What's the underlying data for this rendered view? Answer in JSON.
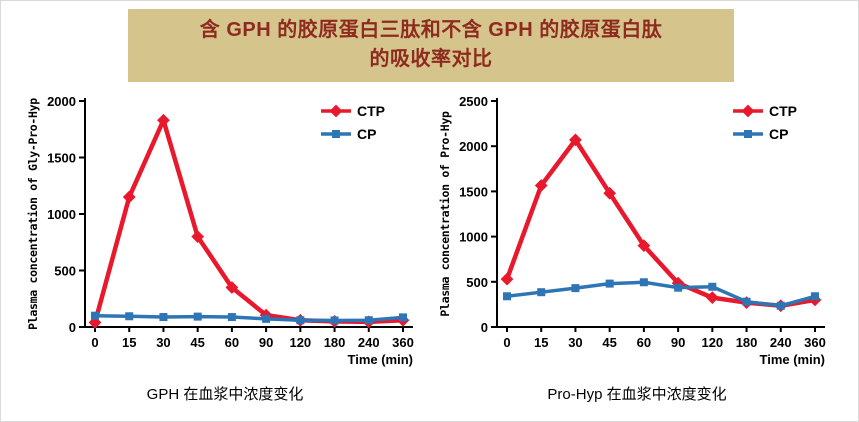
{
  "title": {
    "line1": "含 GPH 的胶原蛋白三肽和不含 GPH 的胶原蛋白肽",
    "line2": "的吸收率对比"
  },
  "colors": {
    "title_bg": "#d5c58c",
    "title_text": "#8e2b1e",
    "ctp_red": "#e8192c",
    "cp_blue": "#2e75b6",
    "axis": "#000000"
  },
  "chart_data": [
    {
      "type": "line",
      "title": "",
      "ylabel": "Plasma concentration of Gly-Pro-Hyp",
      "xlabel": "Time (min)",
      "categories": [
        "0",
        "15",
        "30",
        "45",
        "60",
        "90",
        "120",
        "180",
        "240",
        "360"
      ],
      "ylim": [
        0,
        2000
      ],
      "yticks": [
        0,
        500,
        1000,
        1500,
        2000
      ],
      "grid": false,
      "legend_position": "top-right",
      "series": [
        {
          "name": "CTP",
          "color": "#e8192c",
          "marker": "diamond",
          "width": 4.5,
          "values": [
            40,
            1150,
            1830,
            800,
            350,
            105,
            60,
            50,
            45,
            60
          ]
        },
        {
          "name": "CP",
          "color": "#2e75b6",
          "marker": "square",
          "width": 3.5,
          "values": [
            100,
            95,
            88,
            92,
            88,
            72,
            60,
            58,
            60,
            85
          ]
        }
      ],
      "caption": "GPH 在血浆中浓度变化"
    },
    {
      "type": "line",
      "title": "",
      "ylabel": "Plasma concentration of Pro-Hyp",
      "xlabel": "Time (min)",
      "categories": [
        "0",
        "15",
        "30",
        "45",
        "60",
        "90",
        "120",
        "180",
        "240",
        "360"
      ],
      "ylim": [
        0,
        2500
      ],
      "yticks": [
        0,
        500,
        1000,
        1500,
        2000,
        2500
      ],
      "grid": false,
      "legend_position": "top-right",
      "series": [
        {
          "name": "CTP",
          "color": "#e8192c",
          "marker": "diamond",
          "width": 4.5,
          "values": [
            530,
            1565,
            2070,
            1480,
            900,
            485,
            325,
            270,
            235,
            300
          ]
        },
        {
          "name": "CP",
          "color": "#2e75b6",
          "marker": "square",
          "width": 3.5,
          "values": [
            340,
            385,
            430,
            480,
            495,
            435,
            445,
            280,
            235,
            340
          ]
        }
      ],
      "caption": "Pro-Hyp 在血浆中浓度变化"
    }
  ]
}
